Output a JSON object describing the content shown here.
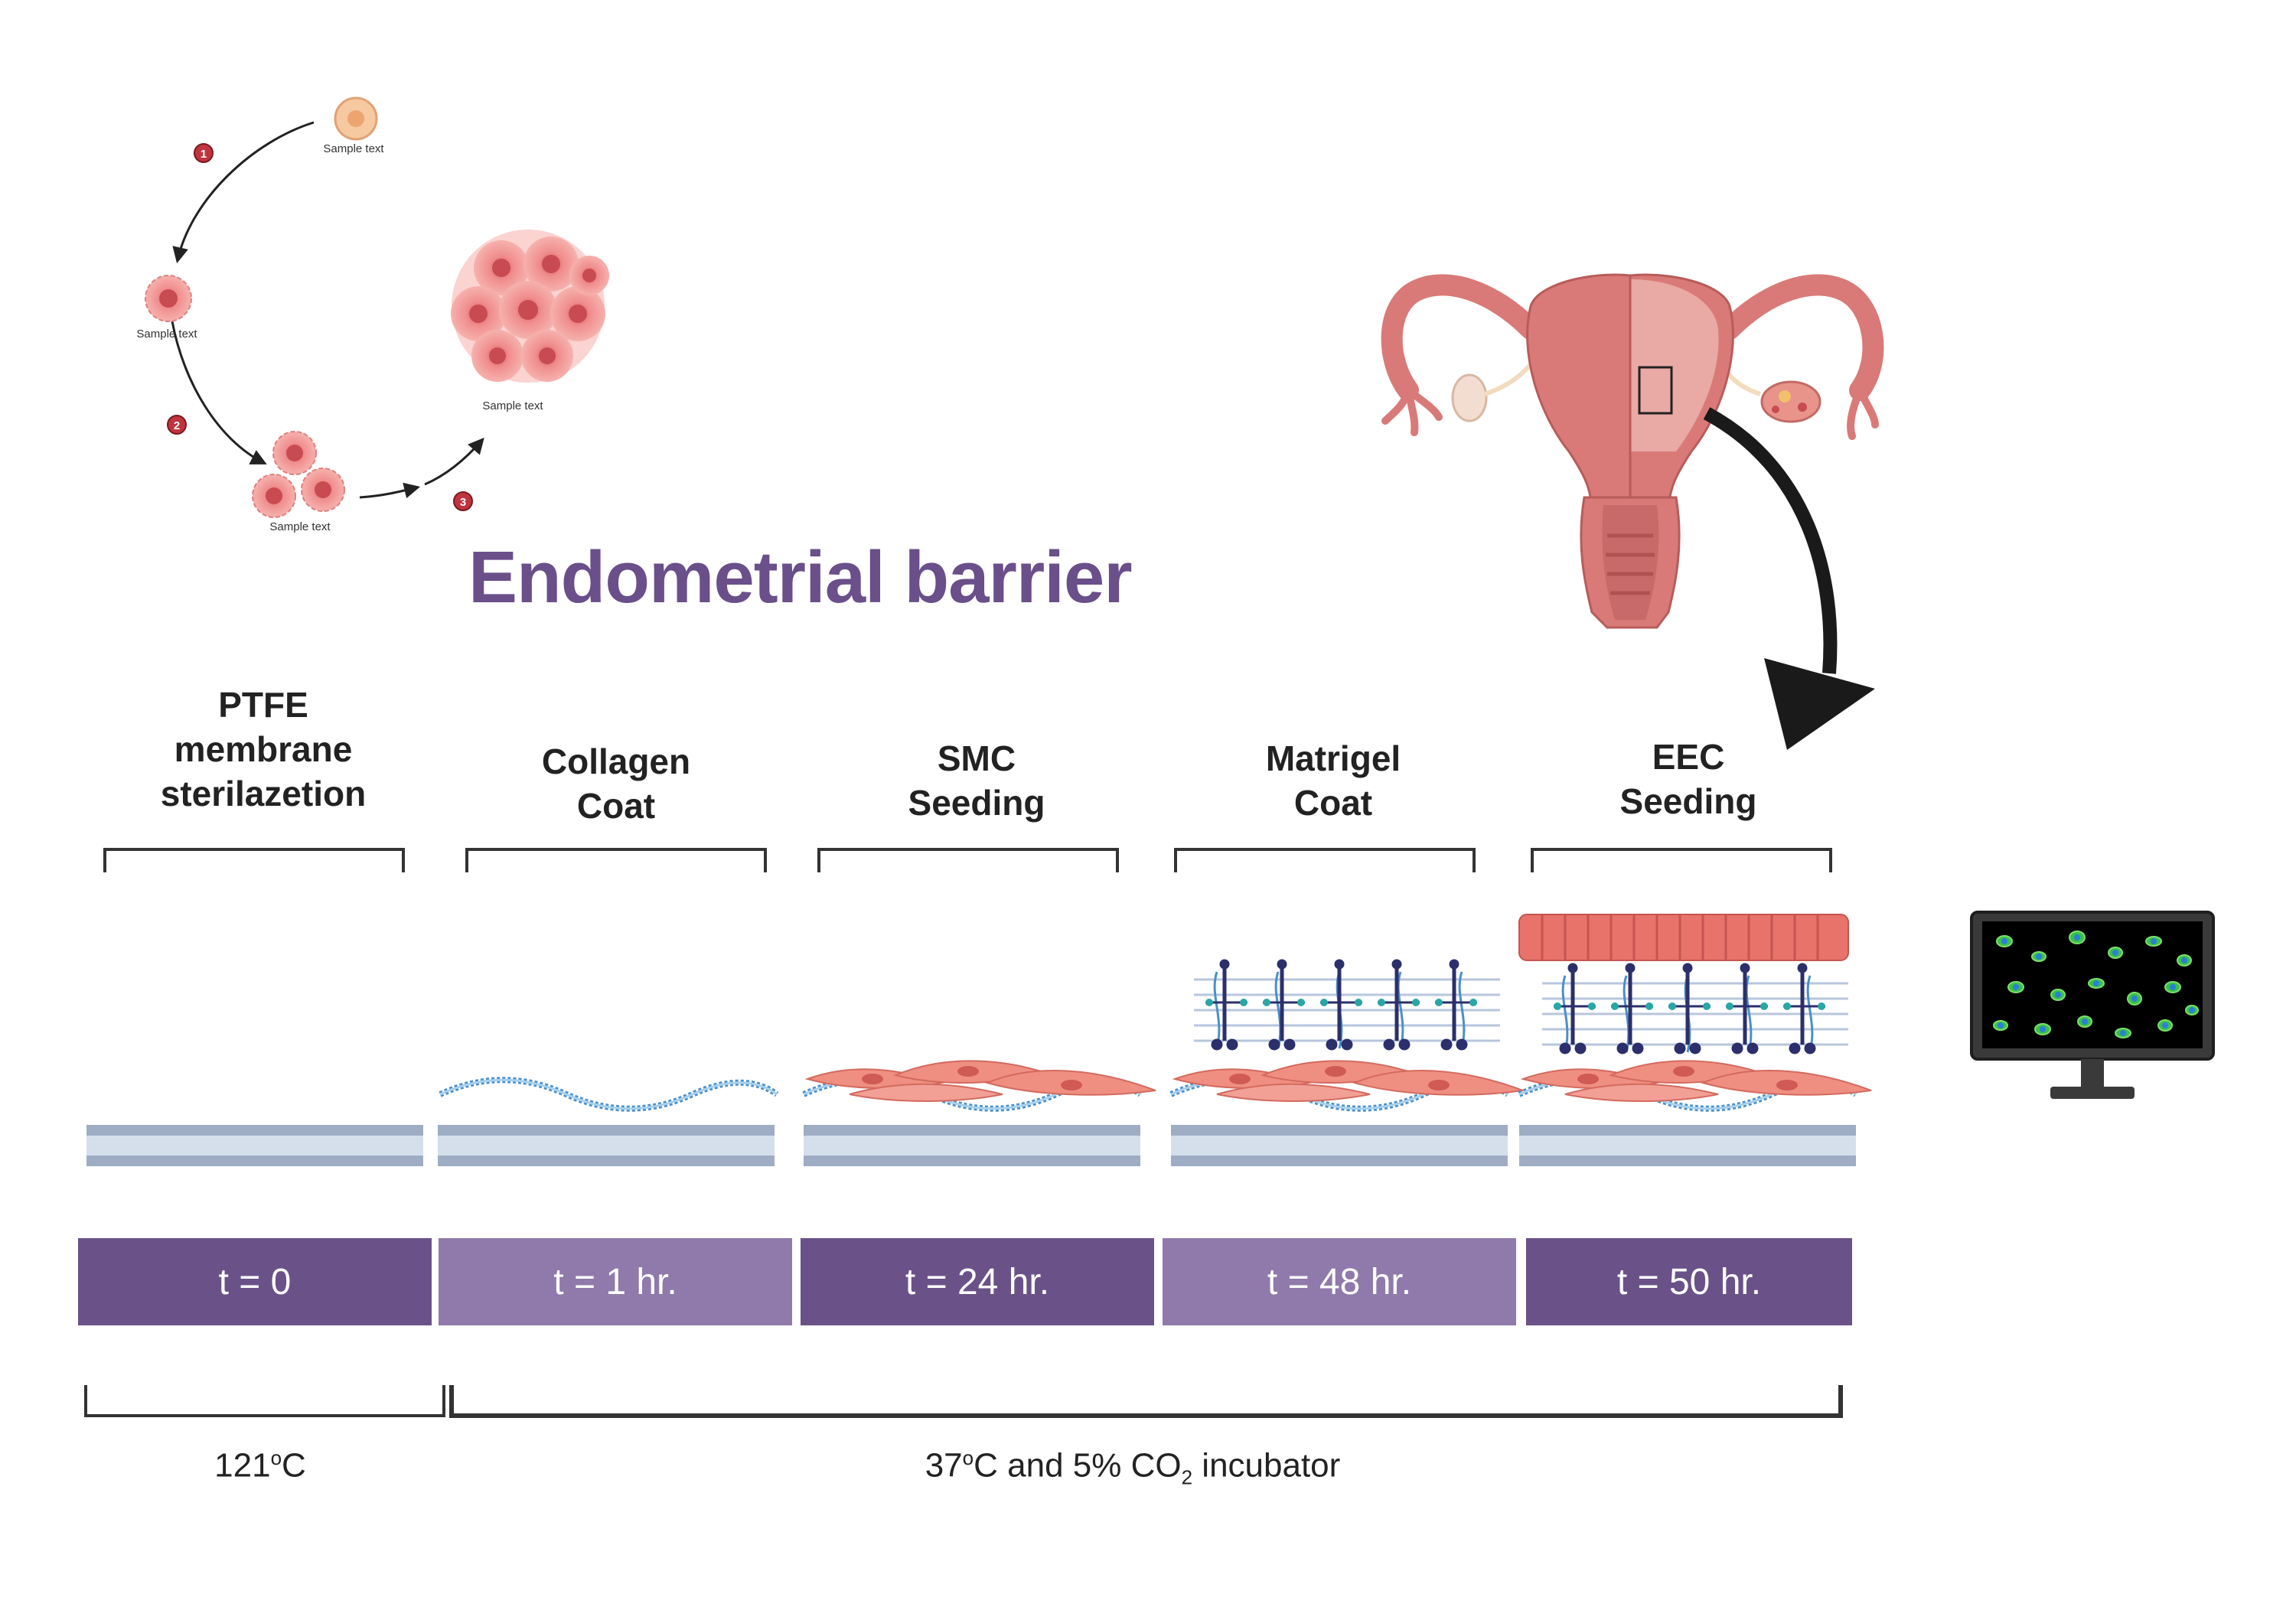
{
  "title": "Endometrial barrier",
  "colors": {
    "title": "#6a4f8a",
    "time_dark": "#6a5289",
    "time_light": "#8f7aab",
    "membrane_dark": "#9eadc4",
    "membrane_light": "#d5dfec",
    "smc_cell": "#ef8f82",
    "eec_cell": "#e8736b",
    "uterus": "#d97a78",
    "cell_pink": "#ee8a8a"
  },
  "cycle": {
    "labels": [
      "Sample text",
      "Sample text",
      "Sample text",
      "Sample text"
    ],
    "steps": [
      "1",
      "2",
      "3"
    ]
  },
  "stages": [
    {
      "label": "PTFE membrane sterilazetion",
      "lines": [
        "PTFE",
        "membrane",
        "sterilazetion"
      ],
      "time": "t = 0",
      "tone": "dark"
    },
    {
      "label": "Collagen Coat",
      "lines": [
        "Collagen",
        "Coat"
      ],
      "time": "t = 1 hr.",
      "tone": "light"
    },
    {
      "label": "SMC Seeding",
      "lines": [
        "SMC",
        "Seeding"
      ],
      "time": "t = 24 hr.",
      "tone": "dark"
    },
    {
      "label": "Matrigel Coat",
      "lines": [
        "Matrigel",
        "Coat"
      ],
      "time": "t = 48 hr.",
      "tone": "light"
    },
    {
      "label": "EEC Seeding",
      "lines": [
        "EEC",
        "Seeding"
      ],
      "time": "t = 50 hr.",
      "tone": "dark"
    }
  ],
  "conditions": {
    "sterilization": {
      "value": "121",
      "sup": "o",
      "unit": "C"
    },
    "incubator": {
      "temp": "37",
      "sup": "o",
      "rest": "C and 5% CO",
      "sub": "2",
      "tail": " incubator"
    }
  },
  "icons": [
    "cell-cycle-diagram",
    "uterus-illustration",
    "arrow-icon",
    "monitor-icon",
    "microscopy-image"
  ]
}
